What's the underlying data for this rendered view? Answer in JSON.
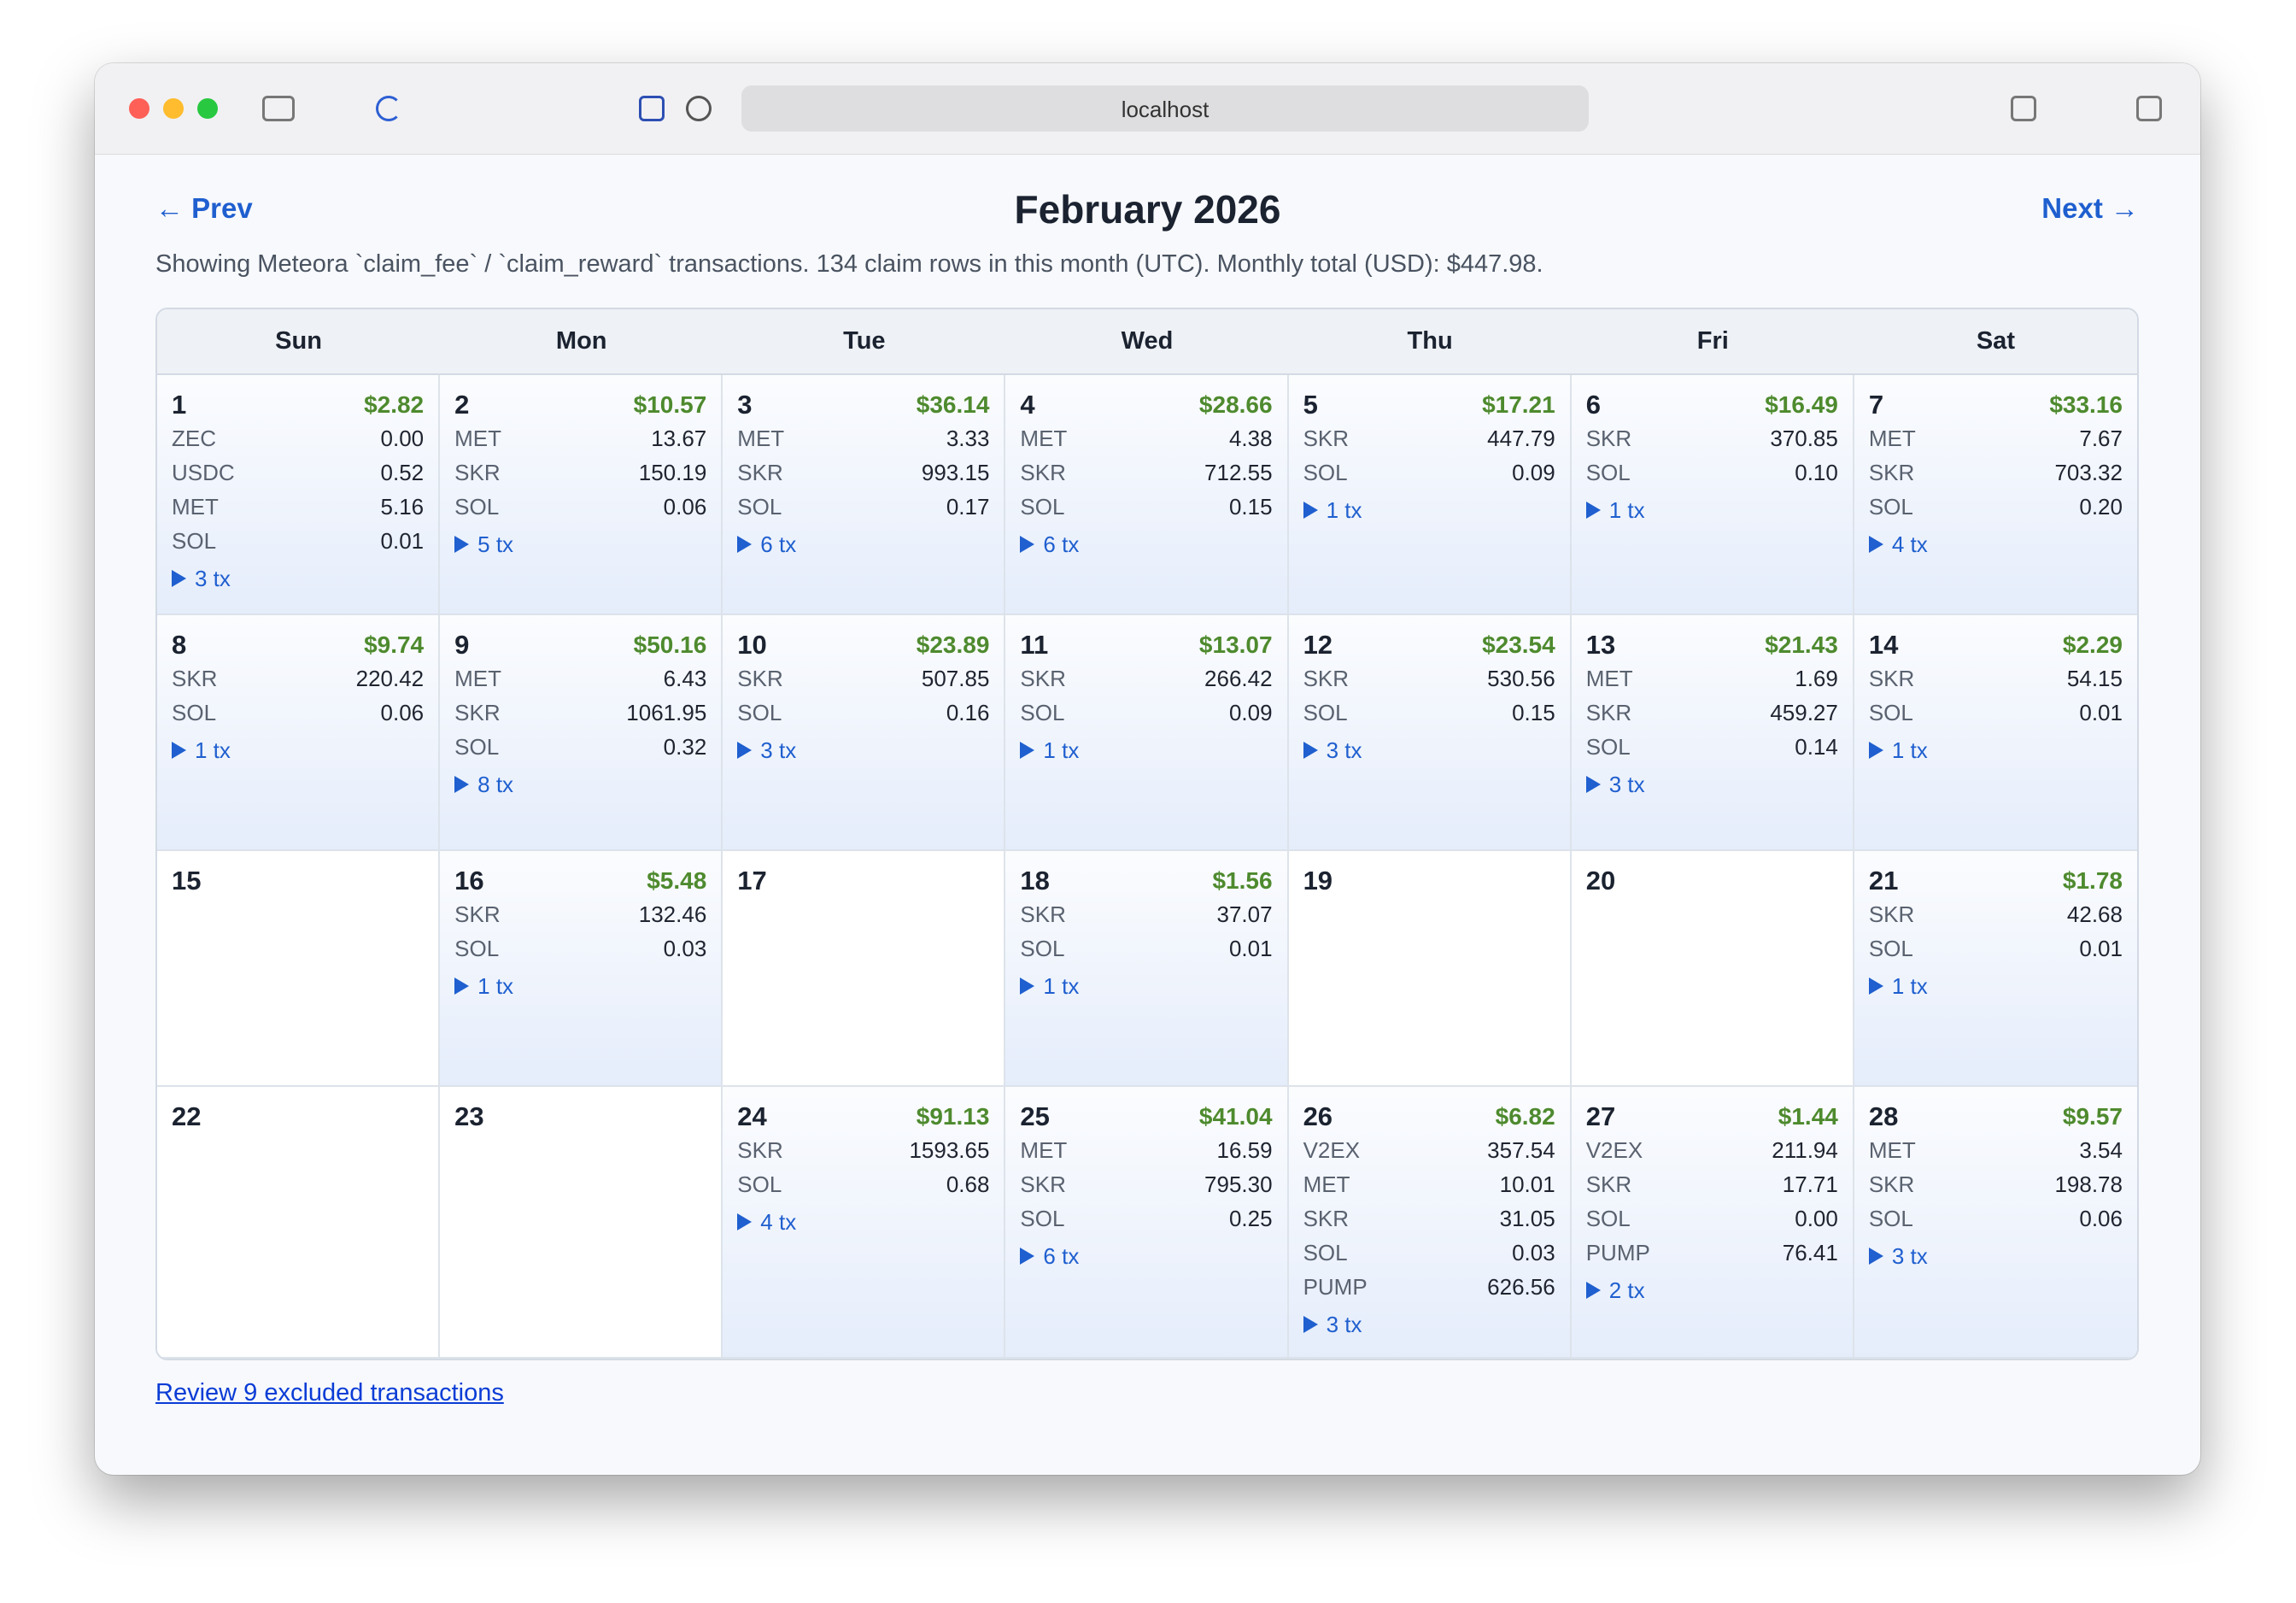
{
  "browser": {
    "url": "localhost"
  },
  "nav": {
    "prev": "← Prev",
    "next": "Next →"
  },
  "calendar": {
    "title": "February 2026",
    "description": "Showing Meteora `claim_fee` / `claim_reward` transactions. 134 claim rows in this month (UTC). Monthly total (USD): $447.98.",
    "weekdays": [
      "Sun",
      "Mon",
      "Tue",
      "Wed",
      "Thu",
      "Fri",
      "Sat"
    ],
    "days": [
      {
        "day": 1,
        "total": "$2.82",
        "tokens": [
          {
            "symbol": "ZEC",
            "amount": "0.00"
          },
          {
            "symbol": "USDC",
            "amount": "0.52"
          },
          {
            "symbol": "MET",
            "amount": "5.16"
          },
          {
            "symbol": "SOL",
            "amount": "0.01"
          }
        ],
        "tx": "3 tx"
      },
      {
        "day": 2,
        "total": "$10.57",
        "tokens": [
          {
            "symbol": "MET",
            "amount": "13.67"
          },
          {
            "symbol": "SKR",
            "amount": "150.19"
          },
          {
            "symbol": "SOL",
            "amount": "0.06"
          }
        ],
        "tx": "5 tx"
      },
      {
        "day": 3,
        "total": "$36.14",
        "tokens": [
          {
            "symbol": "MET",
            "amount": "3.33"
          },
          {
            "symbol": "SKR",
            "amount": "993.15"
          },
          {
            "symbol": "SOL",
            "amount": "0.17"
          }
        ],
        "tx": "6 tx"
      },
      {
        "day": 4,
        "total": "$28.66",
        "tokens": [
          {
            "symbol": "MET",
            "amount": "4.38"
          },
          {
            "symbol": "SKR",
            "amount": "712.55"
          },
          {
            "symbol": "SOL",
            "amount": "0.15"
          }
        ],
        "tx": "6 tx"
      },
      {
        "day": 5,
        "total": "$17.21",
        "tokens": [
          {
            "symbol": "SKR",
            "amount": "447.79"
          },
          {
            "symbol": "SOL",
            "amount": "0.09"
          }
        ],
        "tx": "1 tx"
      },
      {
        "day": 6,
        "total": "$16.49",
        "tokens": [
          {
            "symbol": "SKR",
            "amount": "370.85"
          },
          {
            "symbol": "SOL",
            "amount": "0.10"
          }
        ],
        "tx": "1 tx"
      },
      {
        "day": 7,
        "total": "$33.16",
        "tokens": [
          {
            "symbol": "MET",
            "amount": "7.67"
          },
          {
            "symbol": "SKR",
            "amount": "703.32"
          },
          {
            "symbol": "SOL",
            "amount": "0.20"
          }
        ],
        "tx": "4 tx"
      },
      {
        "day": 8,
        "total": "$9.74",
        "tokens": [
          {
            "symbol": "SKR",
            "amount": "220.42"
          },
          {
            "symbol": "SOL",
            "amount": "0.06"
          }
        ],
        "tx": "1 tx"
      },
      {
        "day": 9,
        "total": "$50.16",
        "tokens": [
          {
            "symbol": "MET",
            "amount": "6.43"
          },
          {
            "symbol": "SKR",
            "amount": "1061.95"
          },
          {
            "symbol": "SOL",
            "amount": "0.32"
          }
        ],
        "tx": "8 tx"
      },
      {
        "day": 10,
        "total": "$23.89",
        "tokens": [
          {
            "symbol": "SKR",
            "amount": "507.85"
          },
          {
            "symbol": "SOL",
            "amount": "0.16"
          }
        ],
        "tx": "3 tx"
      },
      {
        "day": 11,
        "total": "$13.07",
        "tokens": [
          {
            "symbol": "SKR",
            "amount": "266.42"
          },
          {
            "symbol": "SOL",
            "amount": "0.09"
          }
        ],
        "tx": "1 tx"
      },
      {
        "day": 12,
        "total": "$23.54",
        "tokens": [
          {
            "symbol": "SKR",
            "amount": "530.56"
          },
          {
            "symbol": "SOL",
            "amount": "0.15"
          }
        ],
        "tx": "3 tx"
      },
      {
        "day": 13,
        "total": "$21.43",
        "tokens": [
          {
            "symbol": "MET",
            "amount": "1.69"
          },
          {
            "symbol": "SKR",
            "amount": "459.27"
          },
          {
            "symbol": "SOL",
            "amount": "0.14"
          }
        ],
        "tx": "3 tx"
      },
      {
        "day": 14,
        "total": "$2.29",
        "tokens": [
          {
            "symbol": "SKR",
            "amount": "54.15"
          },
          {
            "symbol": "SOL",
            "amount": "0.01"
          }
        ],
        "tx": "1 tx"
      },
      {
        "day": 15
      },
      {
        "day": 16,
        "total": "$5.48",
        "tokens": [
          {
            "symbol": "SKR",
            "amount": "132.46"
          },
          {
            "symbol": "SOL",
            "amount": "0.03"
          }
        ],
        "tx": "1 tx"
      },
      {
        "day": 17
      },
      {
        "day": 18,
        "total": "$1.56",
        "tokens": [
          {
            "symbol": "SKR",
            "amount": "37.07"
          },
          {
            "symbol": "SOL",
            "amount": "0.01"
          }
        ],
        "tx": "1 tx"
      },
      {
        "day": 19
      },
      {
        "day": 20
      },
      {
        "day": 21,
        "total": "$1.78",
        "tokens": [
          {
            "symbol": "SKR",
            "amount": "42.68"
          },
          {
            "symbol": "SOL",
            "amount": "0.01"
          }
        ],
        "tx": "1 tx"
      },
      {
        "day": 22
      },
      {
        "day": 23
      },
      {
        "day": 24,
        "total": "$91.13",
        "tokens": [
          {
            "symbol": "SKR",
            "amount": "1593.65"
          },
          {
            "symbol": "SOL",
            "amount": "0.68"
          }
        ],
        "tx": "4 tx"
      },
      {
        "day": 25,
        "total": "$41.04",
        "tokens": [
          {
            "symbol": "MET",
            "amount": "16.59"
          },
          {
            "symbol": "SKR",
            "amount": "795.30"
          },
          {
            "symbol": "SOL",
            "amount": "0.25"
          }
        ],
        "tx": "6 tx"
      },
      {
        "day": 26,
        "total": "$6.82",
        "tokens": [
          {
            "symbol": "V2EX",
            "amount": "357.54"
          },
          {
            "symbol": "MET",
            "amount": "10.01"
          },
          {
            "symbol": "SKR",
            "amount": "31.05"
          },
          {
            "symbol": "SOL",
            "amount": "0.03"
          },
          {
            "symbol": "PUMP",
            "amount": "626.56"
          }
        ],
        "tx": "3 tx"
      },
      {
        "day": 27,
        "total": "$1.44",
        "tokens": [
          {
            "symbol": "V2EX",
            "amount": "211.94"
          },
          {
            "symbol": "SKR",
            "amount": "17.71"
          },
          {
            "symbol": "SOL",
            "amount": "0.00"
          },
          {
            "symbol": "PUMP",
            "amount": "76.41"
          }
        ],
        "tx": "2 tx"
      },
      {
        "day": 28,
        "total": "$9.57",
        "tokens": [
          {
            "symbol": "MET",
            "amount": "3.54"
          },
          {
            "symbol": "SKR",
            "amount": "198.78"
          },
          {
            "symbol": "SOL",
            "amount": "0.06"
          }
        ],
        "tx": "3 tx"
      }
    ]
  },
  "footer": {
    "review_link": "Review 9 excluded transactions"
  }
}
